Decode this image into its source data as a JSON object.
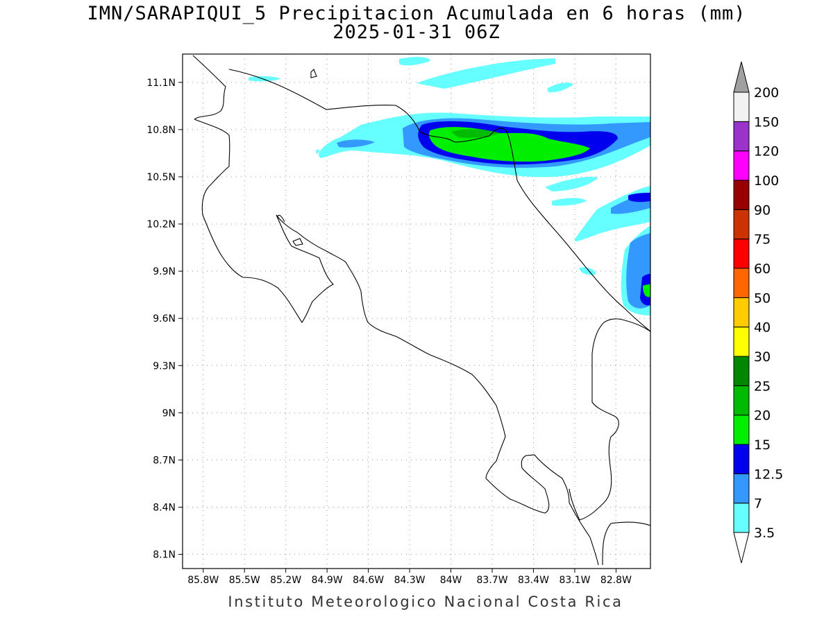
{
  "title": "IMN/SARAPIQUI_5 Precipitacion Acumulada en 6 horas (mm)",
  "subtitle": "2025-01-31 06Z",
  "credit": "Instituto Meteorologico Nacional Costa Rica",
  "map": {
    "lon_range": [
      -85.95,
      -82.55
    ],
    "lat_range": [
      8.01,
      11.28
    ],
    "lon_ticks": [
      {
        "value": -85.8,
        "label": "85.8W"
      },
      {
        "value": -85.5,
        "label": "85.5W"
      },
      {
        "value": -85.2,
        "label": "85.2W"
      },
      {
        "value": -84.9,
        "label": "84.9W"
      },
      {
        "value": -84.6,
        "label": "84.6W"
      },
      {
        "value": -84.3,
        "label": "84.3W"
      },
      {
        "value": -84.0,
        "label": "84W"
      },
      {
        "value": -83.7,
        "label": "83.7W"
      },
      {
        "value": -83.4,
        "label": "83.4W"
      },
      {
        "value": -83.1,
        "label": "83.1W"
      },
      {
        "value": -82.8,
        "label": "82.8W"
      }
    ],
    "lat_ticks": [
      {
        "value": 11.1,
        "label": "11.1N"
      },
      {
        "value": 10.8,
        "label": "10.8N"
      },
      {
        "value": 10.5,
        "label": "10.5N"
      },
      {
        "value": 10.2,
        "label": "10.2N"
      },
      {
        "value": 9.9,
        "label": "9.9N"
      },
      {
        "value": 9.6,
        "label": "9.6N"
      },
      {
        "value": 9.3,
        "label": "9.3N"
      },
      {
        "value": 9.0,
        "label": "9N"
      },
      {
        "value": 8.7,
        "label": "8.7N"
      },
      {
        "value": 8.4,
        "label": "8.4N"
      },
      {
        "value": 8.1,
        "label": "8.1N"
      }
    ],
    "grid": "dotted"
  },
  "colorbar": {
    "labels": [
      "3.5",
      "7",
      "12.5",
      "15",
      "20",
      "25",
      "30",
      "40",
      "50",
      "60",
      "75",
      "90",
      "100",
      "120",
      "150",
      "200"
    ],
    "colors": [
      "#66ffff",
      "#3399ff",
      "#0000ee",
      "#00ee00",
      "#00bb00",
      "#008800",
      "#ffff00",
      "#ffcc00",
      "#ff6600",
      "#ff0000",
      "#cc3300",
      "#990000",
      "#ff00ff",
      "#9933cc",
      "#f2f2f2"
    ],
    "over_color": "#a0a0a0",
    "under_color": "#ffffff"
  }
}
